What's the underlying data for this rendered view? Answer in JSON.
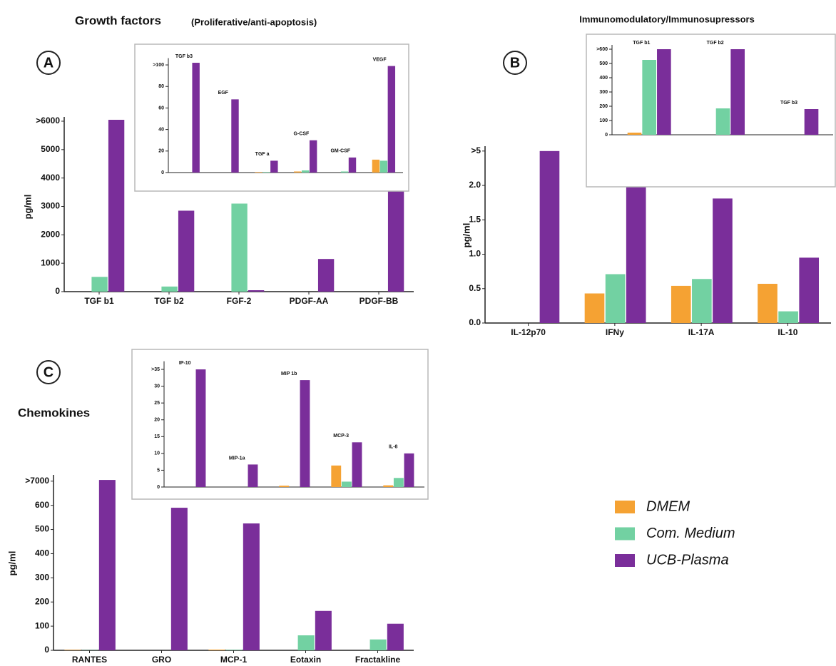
{
  "legend": {
    "series": [
      {
        "name": "DMEM",
        "color": "#f5a233"
      },
      {
        "name": "Com. Medium",
        "color": "#72d1a2"
      },
      {
        "name": "UCB-Plasma",
        "color": "#7a2e9a"
      }
    ]
  },
  "chart_data": [
    {
      "type": "bar",
      "panel": "A",
      "title": "Growth factors",
      "subtitle": "(Proliferative/anti-apoptosis)",
      "ylabel": "pg/ml",
      "categories": [
        "TGF b1",
        "TGF b2",
        "FGF-2",
        "PDGF-AA",
        "PDGF-BB"
      ],
      "series": [
        {
          "values": [
            0,
            0,
            0,
            0,
            0
          ]
        },
        {
          "values": [
            520,
            180,
            3100,
            0,
            0
          ]
        },
        {
          "values": [
            6050,
            2850,
            50,
            1150,
            4950
          ]
        }
      ],
      "ylim": [
        0,
        6100
      ],
      "yticks": [
        0,
        1000,
        2000,
        3000,
        4000,
        5000,
        {
          "value": 6000,
          "label": ">6000"
        }
      ]
    },
    {
      "type": "bar",
      "inset": true,
      "categories": [
        "TGF b3",
        "EGF",
        "TGF a",
        "G-CSF",
        "GM-CSF",
        "VEGF"
      ],
      "series": [
        {
          "values": [
            0,
            0,
            0.5,
            1,
            0,
            12
          ]
        },
        {
          "values": [
            0,
            0,
            0.5,
            2,
            1,
            11
          ]
        },
        {
          "values": [
            102,
            68,
            11,
            30,
            14,
            99
          ]
        }
      ],
      "ylim": [
        0,
        105
      ],
      "yticks": [
        0,
        20,
        40,
        60,
        80,
        {
          "value": 100,
          "label": ">100"
        }
      ]
    },
    {
      "type": "bar",
      "panel": "B",
      "title": "Immunomodulatory/Immunosupressors",
      "ylabel": "pg/ml",
      "categories": [
        "IL-12p70",
        "IFNy",
        "IL-17A",
        "IL-10"
      ],
      "series": [
        {
          "values": [
            0,
            0.43,
            0.54,
            0.57
          ]
        },
        {
          "values": [
            0,
            0.71,
            0.64,
            0.17
          ]
        },
        {
          "values": [
            2.5,
            2.2,
            1.81,
            0.95
          ]
        }
      ],
      "ylim": [
        0,
        2.55
      ],
      "yticks": [
        {
          "value": 0,
          "label": "0.0"
        },
        0.5,
        {
          "value": 1,
          "label": "1.0"
        },
        1.5,
        {
          "value": 2,
          "label": "2.0"
        },
        {
          "value": 2.5,
          "label": ">5"
        }
      ]
    },
    {
      "type": "bar",
      "inset": true,
      "categories": [
        "TGF b1",
        "TGF b2",
        "TGF b3"
      ],
      "series": [
        {
          "values": [
            15,
            0,
            0
          ]
        },
        {
          "values": [
            525,
            185,
            0
          ]
        },
        {
          "values": [
            600,
            600,
            180
          ]
        }
      ],
      "ylim": [
        0,
        620
      ],
      "yticks": [
        0,
        100,
        200,
        300,
        400,
        500,
        {
          "value": 600,
          "label": ">600"
        }
      ]
    },
    {
      "type": "bar",
      "panel": "C",
      "title": "Chemokines",
      "ylabel": "pg/ml",
      "categories": [
        "RANTES",
        "GRO",
        "MCP-1",
        "Eotaxin",
        "Fractakline"
      ],
      "series": [
        {
          "values": [
            2,
            0,
            3,
            0,
            0
          ]
        },
        {
          "values": [
            1,
            0,
            2,
            62,
            45
          ]
        },
        {
          "values": [
            705,
            590,
            525,
            163,
            110
          ]
        }
      ],
      "ylim": [
        0,
        720
      ],
      "yticks": [
        0,
        100,
        200,
        300,
        400,
        500,
        600,
        {
          "value": 700,
          "label": ">7000"
        }
      ]
    },
    {
      "type": "bar",
      "inset": true,
      "categories": [
        "IP-10",
        "MIP-1a",
        "MIP 1b",
        "MCP-3",
        "IL-8"
      ],
      "series": [
        {
          "values": [
            0,
            0,
            0.4,
            6.4,
            0.5
          ]
        },
        {
          "values": [
            0,
            0,
            0,
            1.6,
            2.7
          ]
        },
        {
          "values": [
            35,
            6.7,
            31.8,
            13.3,
            10
          ]
        }
      ],
      "ylim": [
        0,
        37
      ],
      "yticks": [
        0,
        5,
        10,
        15,
        20,
        25,
        30,
        {
          "value": 35,
          "label": ">35"
        }
      ]
    }
  ]
}
